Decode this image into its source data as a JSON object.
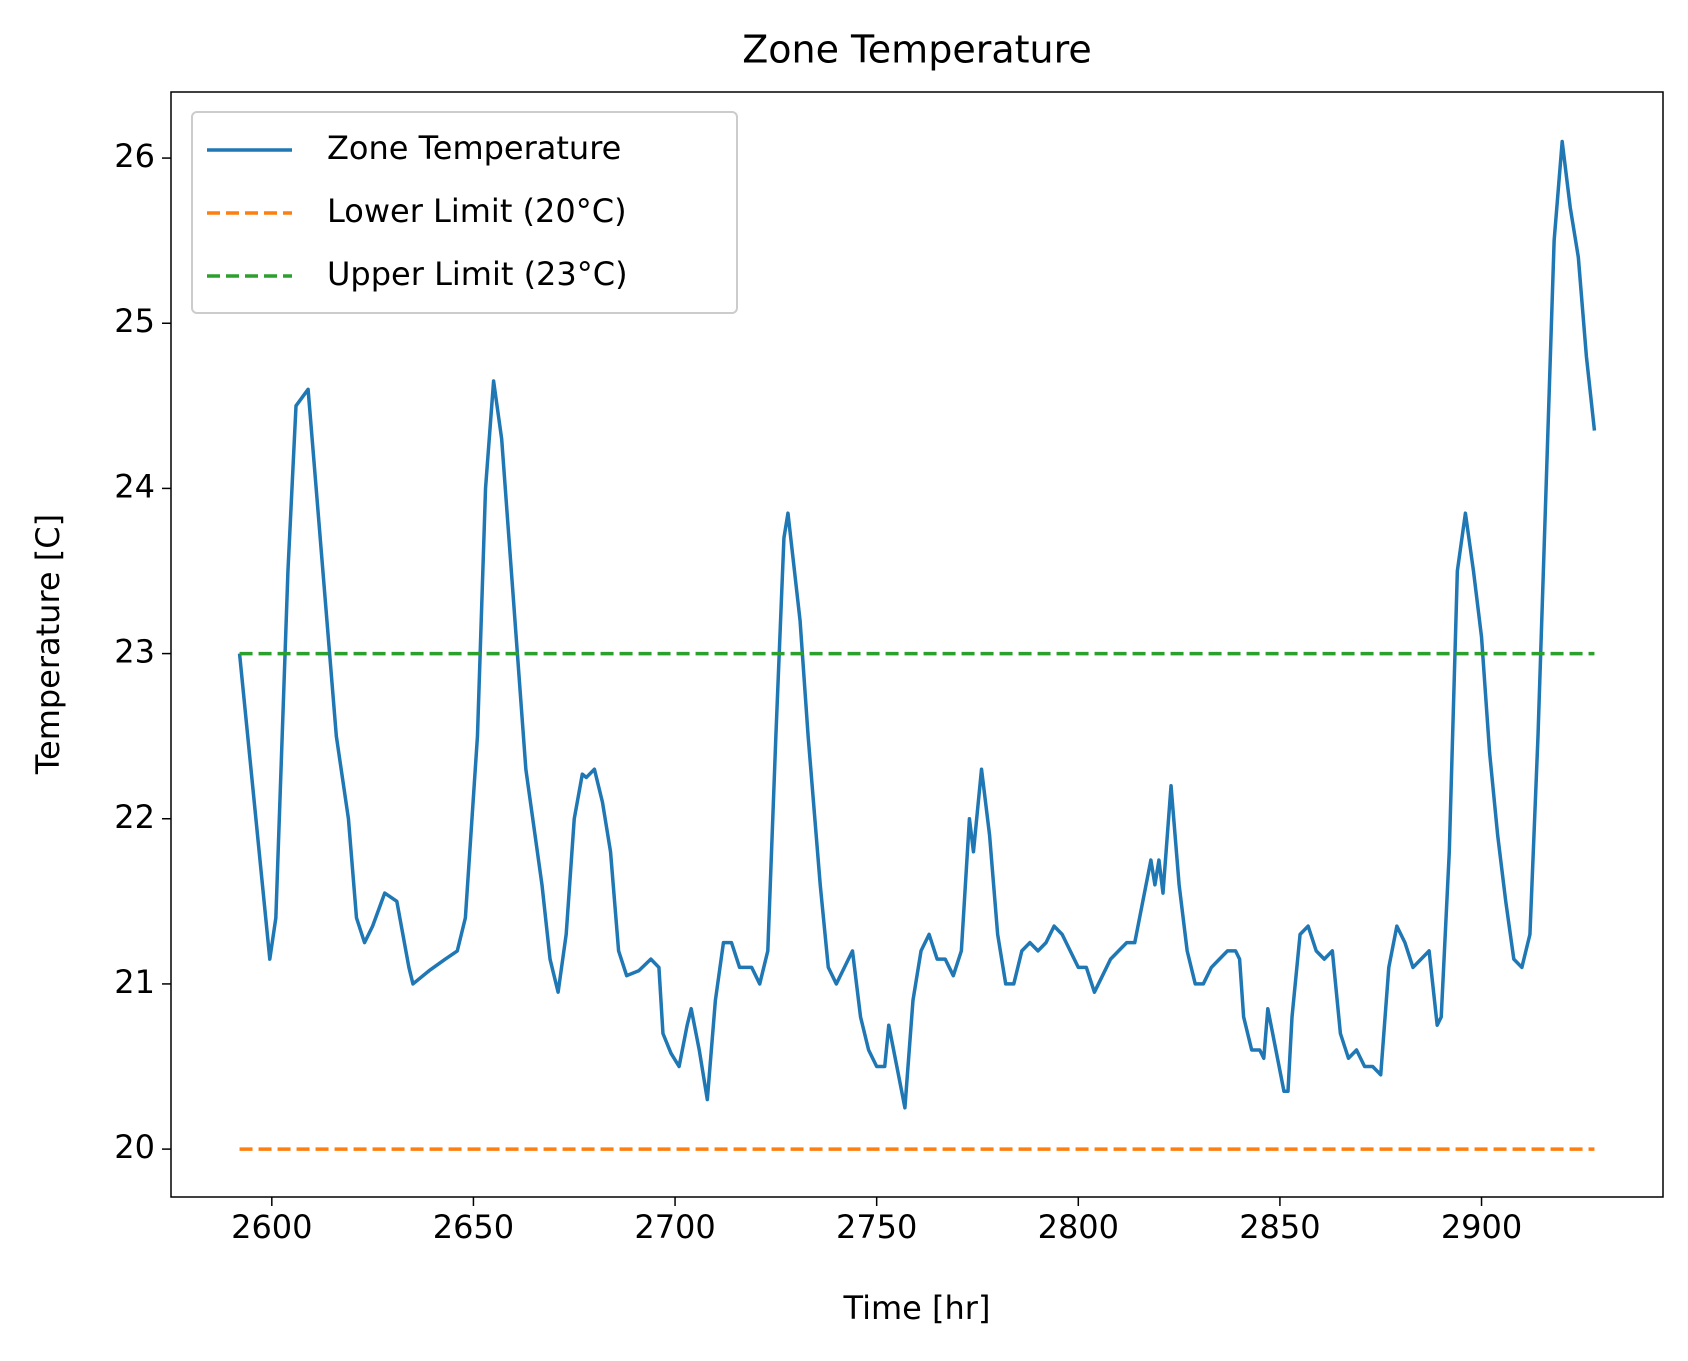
{
  "chart_data": {
    "type": "line",
    "title": "Zone Temperature",
    "x_label": "Time [hr]",
    "y_label": "Temperature [C]",
    "xlim": [
      2575,
      2945
    ],
    "xticks": [
      2600,
      2650,
      2700,
      2750,
      2800,
      2850,
      2900
    ],
    "ylim": [
      19.71,
      26.4
    ],
    "yticks": [
      20,
      21,
      22,
      23,
      24,
      25,
      26
    ],
    "legend": "upper-left",
    "series": [
      {
        "name": "Zone Temperature",
        "color": "#1f77b4",
        "linestyle": "solid",
        "x": [
          2592,
          2599.5,
          2601,
          2604,
          2606,
          2609,
          2611,
          2616,
          2619,
          2621,
          2623,
          2625,
          2628,
          2631,
          2634,
          2635,
          2639,
          2643,
          2646,
          2648,
          2651,
          2653,
          2655,
          2657,
          2660,
          2663,
          2667,
          2669,
          2671,
          2673,
          2675,
          2677,
          2678,
          2680,
          2682,
          2684,
          2686,
          2688,
          2691,
          2694,
          2696,
          2697,
          2699,
          2701,
          2703,
          2704,
          2706,
          2708,
          2710,
          2712,
          2714,
          2716,
          2719,
          2721,
          2723,
          2725,
          2727,
          2728,
          2731,
          2733,
          2736,
          2738,
          2740,
          2742,
          2744,
          2746,
          2748,
          2750,
          2752,
          2753,
          2755,
          2757,
          2759,
          2761,
          2763,
          2765,
          2767,
          2769,
          2771,
          2773,
          2774,
          2776,
          2778,
          2780,
          2782,
          2784,
          2786,
          2788,
          2790,
          2792,
          2794,
          2796,
          2798,
          2800,
          2802,
          2804,
          2806,
          2808,
          2810,
          2812,
          2814,
          2816,
          2818,
          2819,
          2820,
          2821,
          2823,
          2825,
          2827,
          2829,
          2831,
          2833,
          2835,
          2837,
          2839,
          2840,
          2841,
          2843,
          2845,
          2846,
          2847,
          2849,
          2851,
          2852,
          2853,
          2855,
          2857,
          2859,
          2861,
          2863,
          2865,
          2867,
          2869,
          2871,
          2873,
          2875,
          2877,
          2879,
          2881,
          2883,
          2885,
          2887,
          2889,
          2890,
          2892,
          2894,
          2896,
          2898,
          2900,
          2902,
          2904,
          2906,
          2908,
          2910,
          2912,
          2914,
          2916,
          2918,
          2920,
          2922,
          2924,
          2926,
          2928
        ],
        "values": [
          23.0,
          21.15,
          21.4,
          23.5,
          24.5,
          24.6,
          24.0,
          22.5,
          22.0,
          21.4,
          21.25,
          21.35,
          21.55,
          21.5,
          21.1,
          21.0,
          21.08,
          21.15,
          21.2,
          21.4,
          22.5,
          24.0,
          24.65,
          24.3,
          23.3,
          22.3,
          21.6,
          21.15,
          20.95,
          21.3,
          22.0,
          22.27,
          22.25,
          22.3,
          22.1,
          21.8,
          21.2,
          21.05,
          21.08,
          21.15,
          21.1,
          20.7,
          20.58,
          20.5,
          20.75,
          20.85,
          20.6,
          20.3,
          20.9,
          21.25,
          21.25,
          21.1,
          21.1,
          21.0,
          21.2,
          22.5,
          23.7,
          23.85,
          23.2,
          22.5,
          21.6,
          21.1,
          21.0,
          21.1,
          21.2,
          20.8,
          20.6,
          20.5,
          20.5,
          20.75,
          20.5,
          20.25,
          20.9,
          21.2,
          21.3,
          21.15,
          21.15,
          21.05,
          21.2,
          22.0,
          21.8,
          22.3,
          21.9,
          21.3,
          21.0,
          21.0,
          21.2,
          21.25,
          21.2,
          21.25,
          21.35,
          21.3,
          21.2,
          21.1,
          21.1,
          20.95,
          21.05,
          21.15,
          21.2,
          21.25,
          21.25,
          21.5,
          21.75,
          21.6,
          21.75,
          21.55,
          22.2,
          21.6,
          21.2,
          21.0,
          21.0,
          21.1,
          21.15,
          21.2,
          21.2,
          21.15,
          20.8,
          20.6,
          20.6,
          20.55,
          20.85,
          20.6,
          20.35,
          20.35,
          20.8,
          21.3,
          21.35,
          21.2,
          21.15,
          21.2,
          20.7,
          20.55,
          20.6,
          20.5,
          20.5,
          20.45,
          21.1,
          21.35,
          21.25,
          21.1,
          21.15,
          21.2,
          20.75,
          20.8,
          21.8,
          23.5,
          23.85,
          23.5,
          23.1,
          22.4,
          21.9,
          21.5,
          21.15,
          21.1,
          21.3,
          22.5,
          24.0,
          25.5,
          26.1,
          25.7,
          25.4,
          24.8,
          24.35
        ]
      },
      {
        "name": "Lower Limit (20°C)",
        "color": "#ff7f0e",
        "linestyle": "dashed",
        "x": [
          2592,
          2928
        ],
        "values": [
          20,
          20
        ]
      },
      {
        "name": "Upper Limit (23°C)",
        "color": "#2ca02c",
        "linestyle": "dashed",
        "x": [
          2592,
          2928
        ],
        "values": [
          23,
          23
        ]
      }
    ]
  }
}
